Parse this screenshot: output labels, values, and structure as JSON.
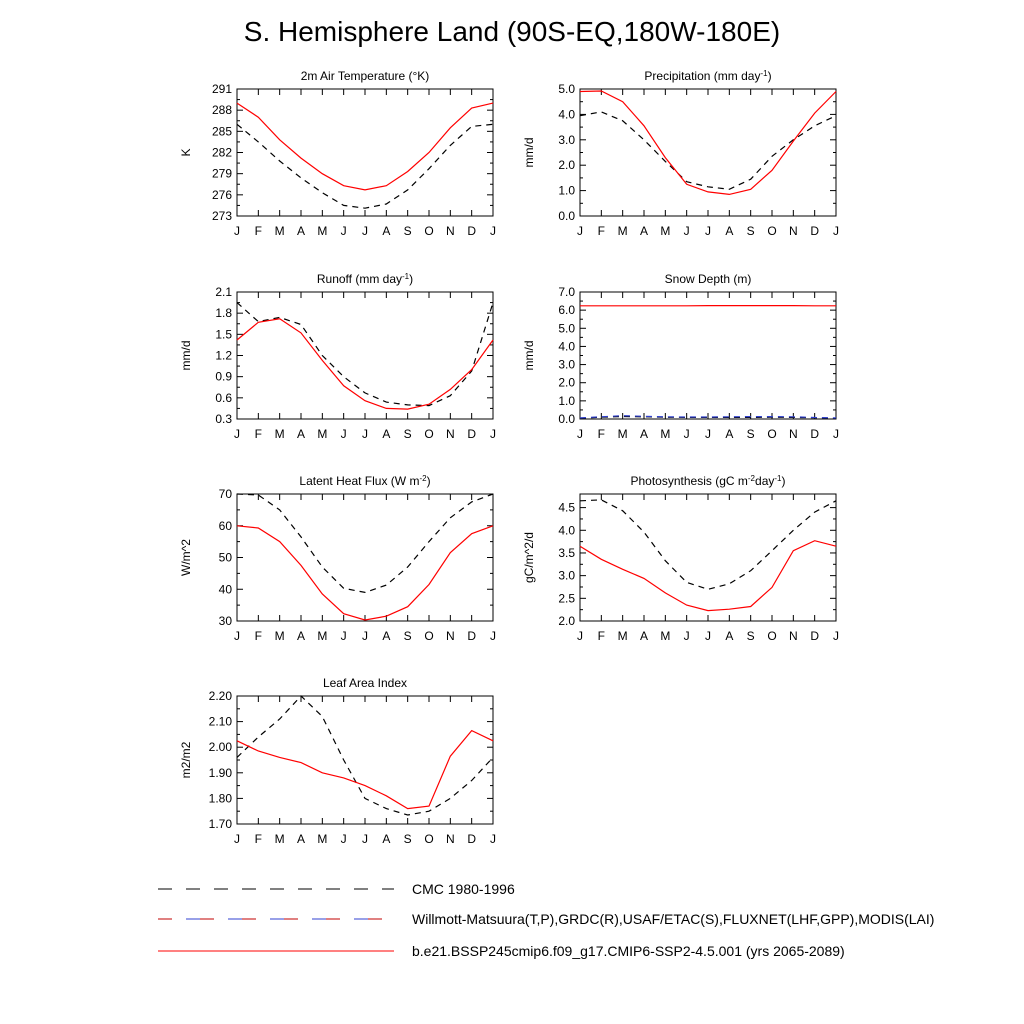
{
  "page": {
    "title": "S. Hemisphere Land (90S-EQ,180W-180E)"
  },
  "legend": [
    {
      "label": "CMC 1980-1996",
      "style": "dash-black"
    },
    {
      "label": "Willmott-Matsuura(T,P),GRDC(R),USAF/ETAC(S),FLUXNET(LHF,GPP),MODIS(LAI)",
      "style": "dash-mixed"
    },
    {
      "label": "b.e21.BSSP245cmip6.f09_g17.CMIP6-SSP2-4.5.001 (yrs 2065-2089)",
      "style": "solid-red"
    }
  ],
  "chart_data": [
    {
      "type": "line",
      "title": "2m Air Temperature (°K)",
      "ylabel": "K",
      "ylim": [
        273,
        291
      ],
      "yticks": [
        273,
        276,
        279,
        282,
        285,
        288,
        291
      ],
      "ytick_labels": [
        "273",
        "276",
        "279",
        "282",
        "285",
        "288",
        "291"
      ],
      "categories": [
        "J",
        "F",
        "M",
        "A",
        "M",
        "J",
        "J",
        "A",
        "S",
        "O",
        "N",
        "D",
        "J"
      ],
      "series": [
        {
          "style": "dash-black",
          "color": "#000000",
          "values": [
            286.0,
            283.5,
            280.8,
            278.4,
            276.3,
            274.5,
            274.1,
            274.7,
            276.7,
            279.7,
            283.0,
            285.7,
            286.0
          ]
        },
        {
          "style": "solid-red",
          "color": "#ff0000",
          "values": [
            289.0,
            287.0,
            283.8,
            281.2,
            279.0,
            277.3,
            276.7,
            277.3,
            279.3,
            282.0,
            285.5,
            288.3,
            289.0
          ]
        }
      ]
    },
    {
      "type": "line",
      "title": "Precipitation (mm day⁻¹)",
      "ylabel": "mm/d",
      "ylim": [
        0.0,
        5.0
      ],
      "yticks": [
        0,
        1,
        2,
        3,
        4,
        5
      ],
      "ytick_labels": [
        "0.0",
        "1.0",
        "2.0",
        "3.0",
        "4.0",
        "5.0"
      ],
      "categories": [
        "J",
        "F",
        "M",
        "A",
        "M",
        "J",
        "J",
        "A",
        "S",
        "O",
        "N",
        "D",
        "J"
      ],
      "series": [
        {
          "style": "dash-black",
          "color": "#000000",
          "values": [
            3.95,
            4.1,
            3.75,
            3.0,
            2.15,
            1.35,
            1.15,
            1.05,
            1.45,
            2.35,
            3.0,
            3.55,
            3.95
          ]
        },
        {
          "style": "solid-red",
          "color": "#ff0000",
          "values": [
            4.9,
            4.92,
            4.5,
            3.55,
            2.3,
            1.25,
            0.95,
            0.85,
            1.05,
            1.8,
            2.95,
            4.05,
            4.9
          ]
        }
      ]
    },
    {
      "type": "line",
      "title": "Runoff (mm day⁻¹)",
      "ylabel": "mm/d",
      "ylim": [
        0.3,
        2.1
      ],
      "yticks": [
        0.3,
        0.6,
        0.9,
        1.2,
        1.5,
        1.8,
        2.1
      ],
      "ytick_labels": [
        "0.3",
        "0.6",
        "0.9",
        "1.2",
        "1.5",
        "1.8",
        "2.1"
      ],
      "categories": [
        "J",
        "F",
        "M",
        "A",
        "M",
        "J",
        "J",
        "A",
        "S",
        "O",
        "N",
        "D",
        "J"
      ],
      "series": [
        {
          "style": "dash-black",
          "color": "#000000",
          "values": [
            1.95,
            1.68,
            1.74,
            1.64,
            1.2,
            0.9,
            0.67,
            0.54,
            0.5,
            0.49,
            0.63,
            0.98,
            1.95
          ]
        },
        {
          "style": "solid-red",
          "color": "#ff0000",
          "values": [
            1.42,
            1.67,
            1.72,
            1.52,
            1.13,
            0.77,
            0.56,
            0.45,
            0.44,
            0.51,
            0.72,
            1.0,
            1.42
          ]
        }
      ]
    },
    {
      "type": "line",
      "title": "Snow Depth (m)",
      "ylabel": "mm/d",
      "ylim": [
        0.0,
        7.0
      ],
      "yticks": [
        0,
        1,
        2,
        3,
        4,
        5,
        6,
        7
      ],
      "ytick_labels": [
        "0.0",
        "1.0",
        "2.0",
        "3.0",
        "4.0",
        "5.0",
        "6.0",
        "7.0"
      ],
      "categories": [
        "J",
        "F",
        "M",
        "A",
        "M",
        "J",
        "J",
        "A",
        "S",
        "O",
        "N",
        "D",
        "J"
      ],
      "series": [
        {
          "style": "dash-black",
          "color": "#000000",
          "values": [
            0.05,
            0.1,
            0.14,
            0.12,
            0.1,
            0.09,
            0.09,
            0.09,
            0.09,
            0.1,
            0.09,
            0.07,
            0.05
          ]
        },
        {
          "style": "dash-blue",
          "color": "#3040d0",
          "values": [
            0.06,
            0.12,
            0.18,
            0.15,
            0.12,
            0.11,
            0.11,
            0.12,
            0.13,
            0.13,
            0.12,
            0.08,
            0.06
          ]
        },
        {
          "style": "solid-red",
          "color": "#ff0000",
          "values": [
            6.24,
            6.24,
            6.24,
            6.24,
            6.24,
            6.24,
            6.25,
            6.25,
            6.25,
            6.25,
            6.25,
            6.24,
            6.24
          ]
        }
      ]
    },
    {
      "type": "line",
      "title": "Latent Heat Flux (W m⁻²)",
      "ylabel": "W/m^2",
      "ylim": [
        30,
        70
      ],
      "yticks": [
        30,
        40,
        50,
        60,
        70
      ],
      "ytick_labels": [
        "30",
        "40",
        "50",
        "60",
        "70"
      ],
      "categories": [
        "J",
        "F",
        "M",
        "A",
        "M",
        "J",
        "J",
        "A",
        "S",
        "O",
        "N",
        "D",
        "J"
      ],
      "series": [
        {
          "style": "dash-black",
          "color": "#000000",
          "values": [
            70.0,
            69.7,
            65.0,
            56.5,
            47.0,
            40.3,
            39.0,
            41.3,
            47.0,
            55.0,
            62.5,
            67.5,
            70.0
          ]
        },
        {
          "style": "solid-red",
          "color": "#ff0000",
          "values": [
            60.0,
            59.3,
            55.0,
            47.5,
            38.5,
            32.3,
            30.3,
            31.5,
            34.5,
            41.5,
            51.5,
            57.5,
            60.0
          ]
        }
      ]
    },
    {
      "type": "line",
      "title": "Photosynthesis (gC m⁻²day⁻¹)",
      "ylabel": "gC/m^2/d",
      "ylim": [
        2.0,
        4.8
      ],
      "yticks": [
        2.0,
        2.5,
        3.0,
        3.5,
        4.0,
        4.5
      ],
      "ytick_labels": [
        "2.0",
        "2.5",
        "3.0",
        "3.5",
        "4.0",
        "4.5"
      ],
      "categories": [
        "J",
        "F",
        "M",
        "A",
        "M",
        "J",
        "J",
        "A",
        "S",
        "O",
        "N",
        "D",
        "J"
      ],
      "series": [
        {
          "style": "dash-black",
          "color": "#000000",
          "values": [
            4.65,
            4.67,
            4.43,
            3.96,
            3.33,
            2.85,
            2.7,
            2.82,
            3.11,
            3.55,
            4.0,
            4.4,
            4.65
          ]
        },
        {
          "style": "solid-red",
          "color": "#ff0000",
          "values": [
            3.65,
            3.36,
            3.14,
            2.94,
            2.62,
            2.35,
            2.23,
            2.26,
            2.32,
            2.74,
            3.55,
            3.77,
            3.65
          ]
        }
      ]
    },
    {
      "type": "line",
      "title": "Leaf Area Index",
      "ylabel": "m2/m2",
      "ylim": [
        1.7,
        2.2
      ],
      "yticks": [
        1.7,
        1.8,
        1.9,
        2.0,
        2.1,
        2.2
      ],
      "ytick_labels": [
        "1.70",
        "1.80",
        "1.90",
        "2.00",
        "2.10",
        "2.20"
      ],
      "categories": [
        "J",
        "F",
        "M",
        "A",
        "M",
        "J",
        "J",
        "A",
        "S",
        "O",
        "N",
        "D",
        "J"
      ],
      "series": [
        {
          "style": "dash-black",
          "color": "#000000",
          "values": [
            1.96,
            2.04,
            2.11,
            2.2,
            2.12,
            1.95,
            1.8,
            1.76,
            1.735,
            1.75,
            1.8,
            1.87,
            1.96
          ]
        },
        {
          "style": "solid-red",
          "color": "#ff0000",
          "values": [
            2.025,
            1.985,
            1.96,
            1.94,
            1.9,
            1.88,
            1.85,
            1.81,
            1.76,
            1.77,
            1.965,
            2.065,
            2.025
          ]
        }
      ]
    }
  ]
}
